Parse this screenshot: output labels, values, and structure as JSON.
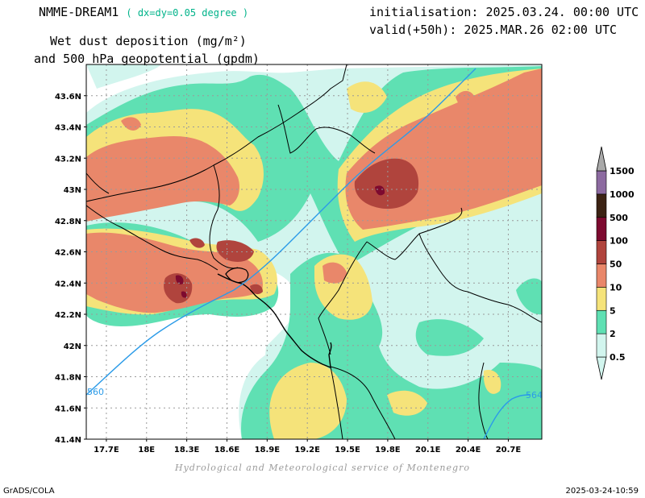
{
  "header": {
    "model": "NMME-DREAM1",
    "resolution": "( dx=dy=0.05 degree )",
    "title_line1": "Wet dust deposition (mg/m²)",
    "title_line2": "and 500 hPa geopotential (gpdm)",
    "initialisation": "initialisation: 2025.03.24. 00:00 UTC",
    "valid": "valid(+50h): 2025.MAR.26 02:00 UTC"
  },
  "footer": {
    "credit": "Hydrological and Meteorological service of Montenegro",
    "software": "GrADS/COLA",
    "timestamp": "2025-03-24-10:59"
  },
  "map": {
    "lat_labels": [
      "43.6N",
      "43.4N",
      "43.2N",
      "43N",
      "42.8N",
      "42.6N",
      "42.4N",
      "42.2N",
      "42N",
      "41.8N",
      "41.6N",
      "41.4N"
    ],
    "lat_values": [
      43.6,
      43.4,
      43.2,
      43.0,
      42.8,
      42.6,
      42.4,
      42.2,
      42.0,
      41.8,
      41.6,
      41.4
    ],
    "lon_labels": [
      "17.7E",
      "18E",
      "18.3E",
      "18.6E",
      "18.9E",
      "19.2E",
      "19.5E",
      "19.8E",
      "20.1E",
      "20.4E",
      "20.7E"
    ],
    "lon_values": [
      17.7,
      18.0,
      18.3,
      18.6,
      18.9,
      19.2,
      19.5,
      19.8,
      20.1,
      20.4,
      20.7
    ],
    "lat_range": [
      41.4,
      43.8
    ],
    "lon_range": [
      17.55,
      20.95
    ],
    "contour_labels": [
      "560",
      "564"
    ],
    "contour_color": "#2b9be8"
  },
  "colorbar": {
    "levels": [
      "0.5",
      "2",
      "5",
      "10",
      "50",
      "100",
      "500",
      "1000",
      "1500"
    ],
    "colors": [
      "#d2f5ee",
      "#5fe0b3",
      "#f5e37a",
      "#e9876a",
      "#b0443d",
      "#7d0a2f",
      "#3c2314",
      "#8c6aa0",
      "#a9a9a9"
    ]
  }
}
